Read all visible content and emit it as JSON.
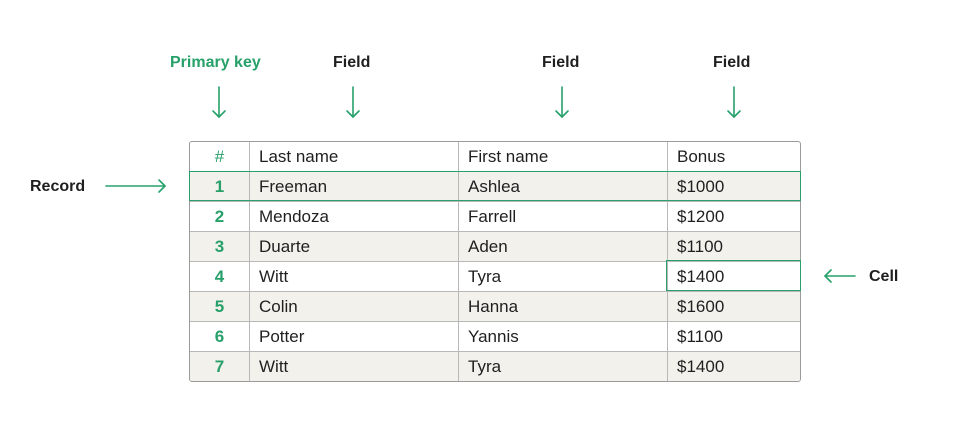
{
  "labels": {
    "primary_key": "Primary key",
    "field_1": "Field",
    "field_2": "Field",
    "field_3": "Field",
    "record": "Record",
    "cell": "Cell"
  },
  "colors": {
    "accent": "#27a06a",
    "row_shade": "#f3f1ec",
    "border": "#9a9a9a"
  },
  "table": {
    "headers": [
      "#",
      "Last name",
      "First name",
      "Bonus"
    ],
    "rows": [
      [
        "1",
        "Freeman",
        "Ashlea",
        "$1000"
      ],
      [
        "2",
        "Mendoza",
        "Farrell",
        "$1200"
      ],
      [
        "3",
        "Duarte",
        "Aden",
        "$1100"
      ],
      [
        "4",
        "Witt",
        "Tyra",
        "$1400"
      ],
      [
        "5",
        "Colin",
        "Hanna",
        "$1600"
      ],
      [
        "6",
        "Potter",
        "Yannis",
        "$1100"
      ],
      [
        "7",
        "Witt",
        "Tyra",
        "$1400"
      ]
    ]
  }
}
